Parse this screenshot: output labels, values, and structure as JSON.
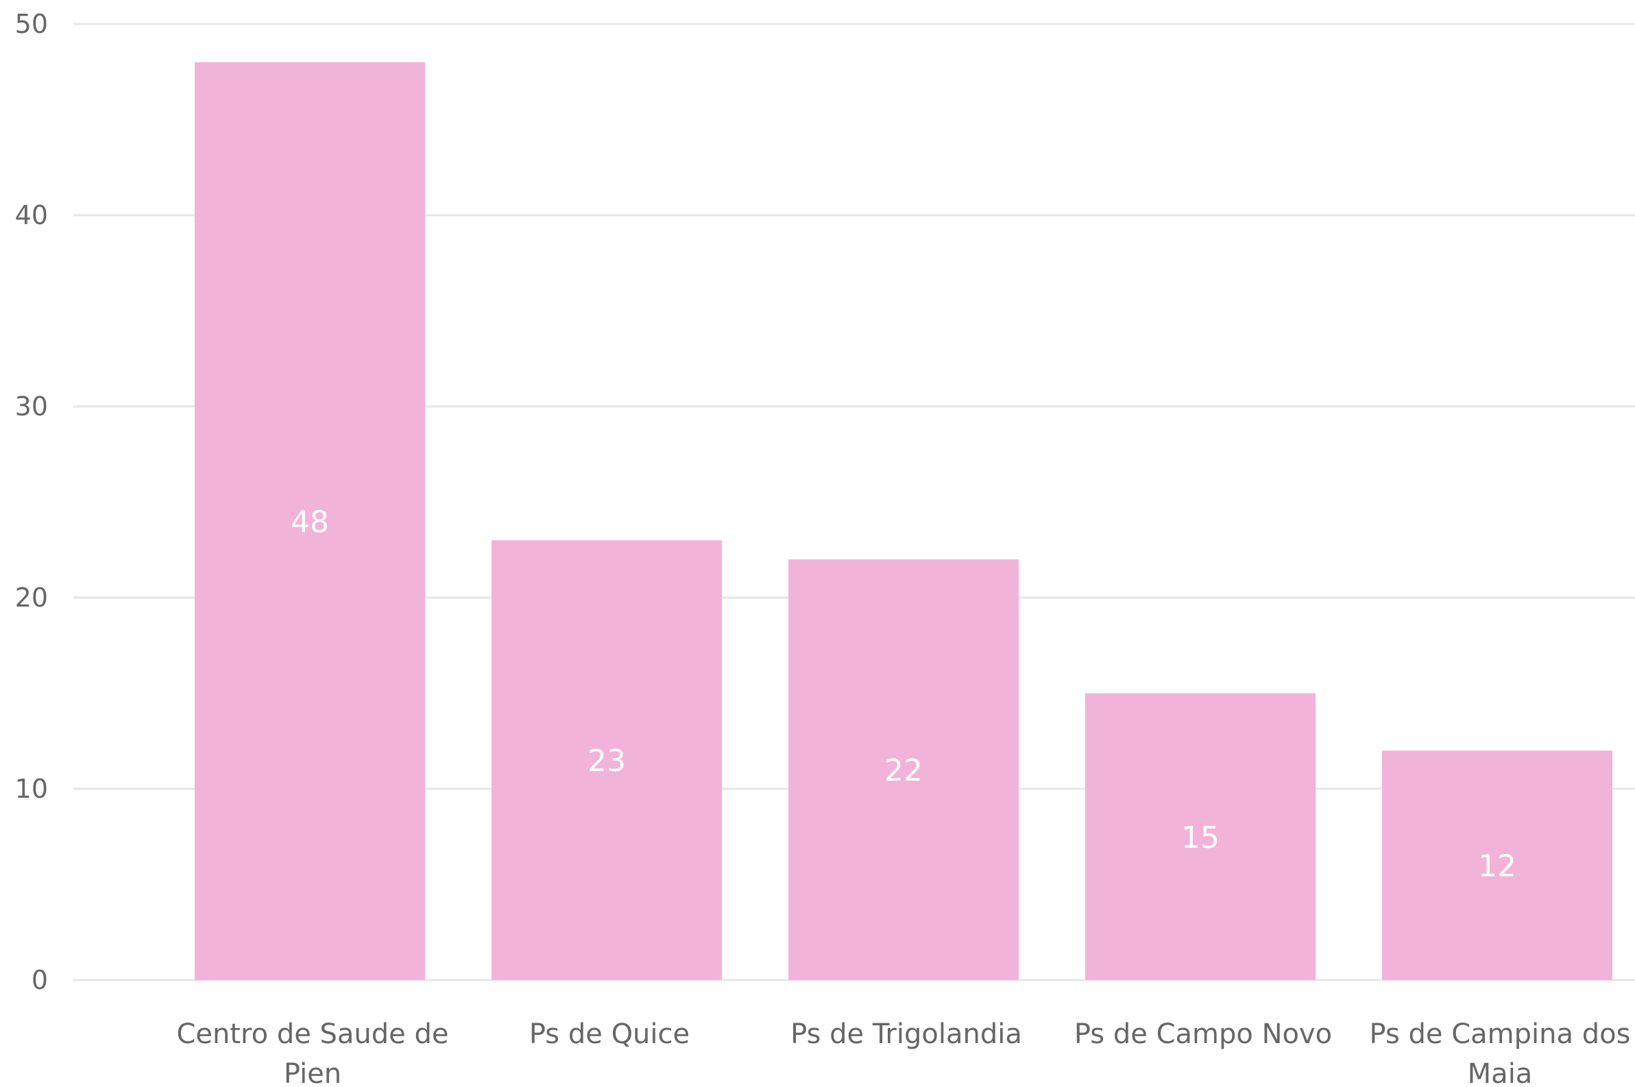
{
  "chart_data": {
    "type": "bar",
    "categories": [
      "Centro de Saude de Pien",
      "Ps de Quice",
      "Ps de Trigolandia",
      "Ps de Campo Novo",
      "Ps de Campina dos Maia"
    ],
    "category_lines": [
      [
        "Centro de Saude de",
        "Pien"
      ],
      [
        "Ps de Quice"
      ],
      [
        "Ps de Trigolandia"
      ],
      [
        "Ps de Campo Novo"
      ],
      [
        "Ps de Campina dos",
        "Maia"
      ]
    ],
    "values": [
      48,
      23,
      22,
      15,
      12
    ],
    "data_labels": [
      "48",
      "23",
      "22",
      "15",
      "12"
    ],
    "ylim": [
      0,
      50
    ],
    "yticks": [
      "0",
      "10",
      "20",
      "30",
      "40",
      "50"
    ],
    "title": "",
    "xlabel": "",
    "ylabel": "",
    "grid": true,
    "legend": "none",
    "colors": {
      "bar": "#F2B3D8",
      "grid": "#E6E6E6",
      "tick_text": "#666666",
      "data_label": "#FFFFFF"
    }
  }
}
